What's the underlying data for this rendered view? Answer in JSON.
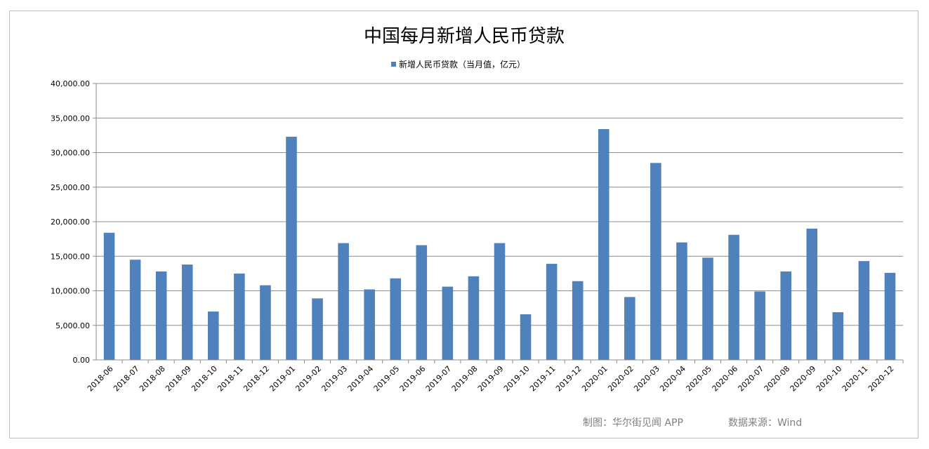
{
  "chart_data": {
    "type": "bar",
    "title": "中国每月新增人民币贷款",
    "legend": "新增人民币贷款（当月值，亿元）",
    "legend_position": "top",
    "grid": true,
    "color": "#4f81bd",
    "ylim": [
      0,
      40000
    ],
    "yticks": [
      "0.00",
      "5,000.00",
      "10,000.00",
      "15,000.00",
      "20,000.00",
      "25,000.00",
      "30,000.00",
      "35,000.00",
      "40,000.00"
    ],
    "ytick_values": [
      0,
      5000,
      10000,
      15000,
      20000,
      25000,
      30000,
      35000,
      40000
    ],
    "categories": [
      "2018-06",
      "2018-07",
      "2018-08",
      "2018-09",
      "2018-10",
      "2018-11",
      "2018-12",
      "2019-01",
      "2019-02",
      "2019-03",
      "2019-04",
      "2019-05",
      "2019-06",
      "2019-07",
      "2019-08",
      "2019-09",
      "2019-10",
      "2019-11",
      "2019-12",
      "2020-01",
      "2020-02",
      "2020-03",
      "2020-04",
      "2020-05",
      "2020-06",
      "2020-07",
      "2020-08",
      "2020-09",
      "2020-10",
      "2020-11",
      "2020-12"
    ],
    "values": [
      18400,
      14500,
      12800,
      13800,
      7000,
      12500,
      10800,
      32300,
      8900,
      16900,
      10200,
      11800,
      16600,
      10600,
      12100,
      16900,
      6600,
      13900,
      11400,
      33400,
      9100,
      28500,
      17000,
      14800,
      18100,
      9900,
      12800,
      19000,
      6900,
      14300,
      12600
    ]
  },
  "footer": {
    "credit": "制图：华尔街见闻 APP",
    "source": "数据来源：Wind"
  }
}
